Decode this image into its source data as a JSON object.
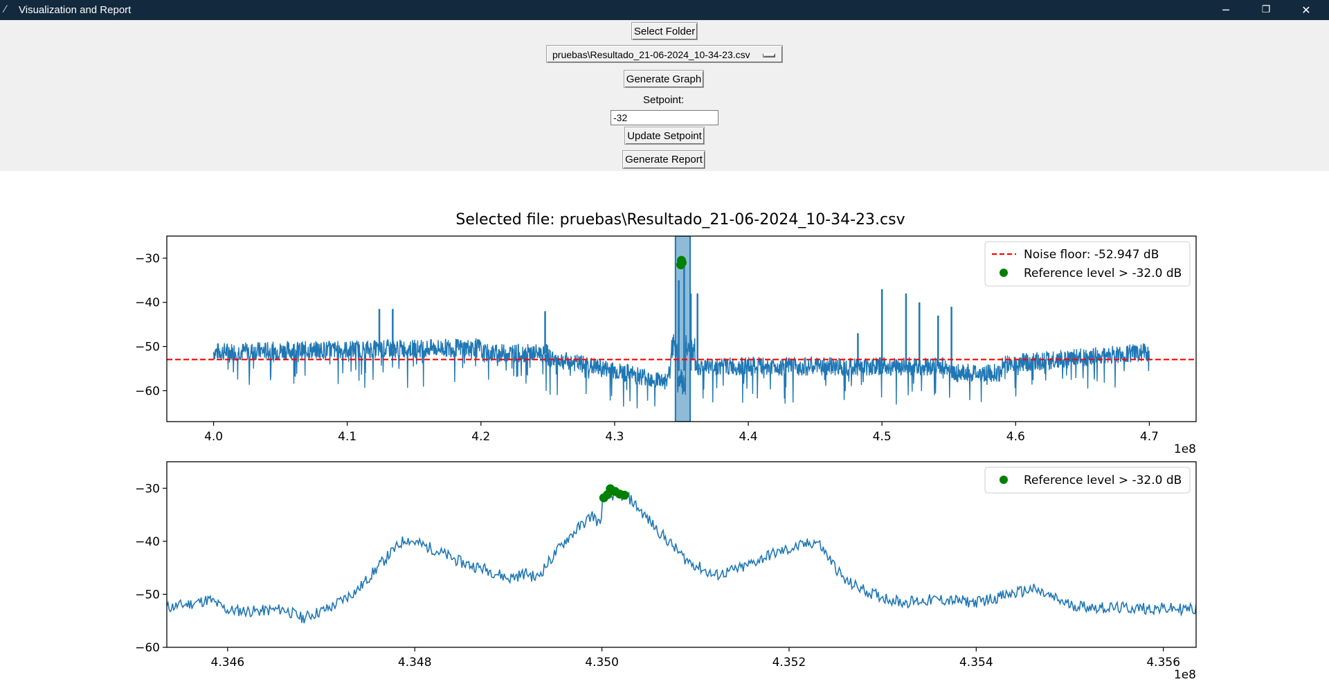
{
  "window": {
    "title": "Visualization and Report",
    "minimize_glyph": "─",
    "restore_glyph": "❐",
    "close_glyph": "✕",
    "icon": "feather-icon"
  },
  "controls": {
    "select_folder_label": "Select Folder",
    "file_option_value": "pruebas\\Resultado_21-06-2024_10-34-23.csv",
    "generate_graph_label": "Generate Graph",
    "setpoint_label": "Setpoint:",
    "setpoint_value": "-32",
    "update_setpoint_label": "Update Setpoint",
    "generate_report_label": "Generate Report"
  },
  "chart_data": [
    {
      "type": "line",
      "title": "Selected file: pruebas\\Resultado_21-06-2024_10-34-23.csv",
      "x_offset_label": "1e8",
      "xlim": [
        3.965,
        4.735
      ],
      "ylim": [
        -67,
        -25
      ],
      "xticks": [
        "4.0",
        "4.1",
        "4.2",
        "4.3",
        "4.4",
        "4.5",
        "4.6",
        "4.7"
      ],
      "xtick_values": [
        4.0,
        4.1,
        4.2,
        4.3,
        4.4,
        4.5,
        4.6,
        4.7
      ],
      "yticks": [
        "−30",
        "−40",
        "−50",
        "−60"
      ],
      "ytick_values": [
        -30,
        -40,
        -50,
        -60
      ],
      "series_color": "#1f77b4",
      "noise_floor": -52.947,
      "noise_floor_color": "#ff0000",
      "highlight_span": [
        4.3455,
        4.3565
      ],
      "highlight_color": "#1f77b4",
      "reference_points": [
        {
          "x": 4.3495,
          "y": -31.5
        },
        {
          "x": 4.35,
          "y": -30.5
        },
        {
          "x": 4.3505,
          "y": -31.0
        }
      ],
      "reference_color": "#008000",
      "spikes": [
        {
          "x": 4.124,
          "y": -41.5
        },
        {
          "x": 4.134,
          "y": -41.5
        },
        {
          "x": 4.248,
          "y": -42
        },
        {
          "x": 4.348,
          "y": -35
        },
        {
          "x": 4.352,
          "y": -31
        },
        {
          "x": 4.357,
          "y": -38
        },
        {
          "x": 4.362,
          "y": -38
        },
        {
          "x": 4.482,
          "y": -47
        },
        {
          "x": 4.5,
          "y": -37
        },
        {
          "x": 4.518,
          "y": -38
        },
        {
          "x": 4.528,
          "y": -40
        },
        {
          "x": 4.542,
          "y": -43
        },
        {
          "x": 4.552,
          "y": -41
        }
      ],
      "legend": [
        {
          "label": "Noise floor: -52.947 dB",
          "marker": "dashed-line",
          "color": "#ff0000"
        },
        {
          "label": "Reference level > -32.0 dB",
          "marker": "dot",
          "color": "#008000"
        }
      ],
      "legend_position": "upper-right",
      "grid": false
    },
    {
      "type": "line",
      "title": "",
      "x_offset_label": "1e8",
      "xlim": [
        4.34535,
        4.35635
      ],
      "ylim": [
        -60,
        -25
      ],
      "xticks": [
        "4.346",
        "4.348",
        "4.350",
        "4.352",
        "4.354",
        "4.356"
      ],
      "xtick_values": [
        4.346,
        4.348,
        4.35,
        4.352,
        4.354,
        4.356
      ],
      "yticks": [
        "−30",
        "−40",
        "−50",
        "−60"
      ],
      "ytick_values": [
        -30,
        -40,
        -50,
        -60
      ],
      "series_color": "#1f77b4",
      "trace": [
        [
          4.34535,
          -52.5
        ],
        [
          4.3456,
          -51.8
        ],
        [
          4.3458,
          -51.0
        ],
        [
          4.346,
          -53.0
        ],
        [
          4.3463,
          -53.2
        ],
        [
          4.3466,
          -52.8
        ],
        [
          4.3468,
          -54.5
        ],
        [
          4.3471,
          -52.5
        ],
        [
          4.3474,
          -49.0
        ],
        [
          4.3477,
          -43.0
        ],
        [
          4.3479,
          -39.5
        ],
        [
          4.3482,
          -41.5
        ],
        [
          4.3485,
          -44.0
        ],
        [
          4.3488,
          -45.5
        ],
        [
          4.349,
          -47.0
        ],
        [
          4.3492,
          -46.0
        ],
        [
          4.3493,
          -47.0
        ],
        [
          4.3496,
          -40.0
        ],
        [
          4.3499,
          -35.0
        ],
        [
          4.34998,
          -37.0
        ],
        [
          4.35001,
          -32.0
        ],
        [
          4.35015,
          -31.0
        ],
        [
          4.3503,
          -32.0
        ],
        [
          4.3506,
          -38.0
        ],
        [
          4.3509,
          -43.5
        ],
        [
          4.3512,
          -46.5
        ],
        [
          4.3515,
          -45.0
        ],
        [
          4.3518,
          -42.5
        ],
        [
          4.3521,
          -41.0
        ],
        [
          4.3523,
          -40.0
        ],
        [
          4.3526,
          -47.5
        ],
        [
          4.3529,
          -50.0
        ],
        [
          4.3532,
          -51.5
        ],
        [
          4.3536,
          -51.0
        ],
        [
          4.354,
          -51.5
        ],
        [
          4.3546,
          -49.0
        ],
        [
          4.355,
          -52.0
        ],
        [
          4.3553,
          -52.5
        ],
        [
          4.35635,
          -52.8
        ]
      ],
      "reference_points": [
        {
          "x": 4.35002,
          "y": -31.8
        },
        {
          "x": 4.35006,
          "y": -31.2
        },
        {
          "x": 4.35009,
          "y": -30.1
        },
        {
          "x": 4.35014,
          "y": -30.6
        },
        {
          "x": 4.35019,
          "y": -31.1
        },
        {
          "x": 4.35024,
          "y": -31.3
        }
      ],
      "reference_color": "#008000",
      "legend": [
        {
          "label": "Reference level > -32.0 dB",
          "marker": "dot",
          "color": "#008000"
        }
      ],
      "legend_position": "upper-right",
      "grid": false
    }
  ]
}
